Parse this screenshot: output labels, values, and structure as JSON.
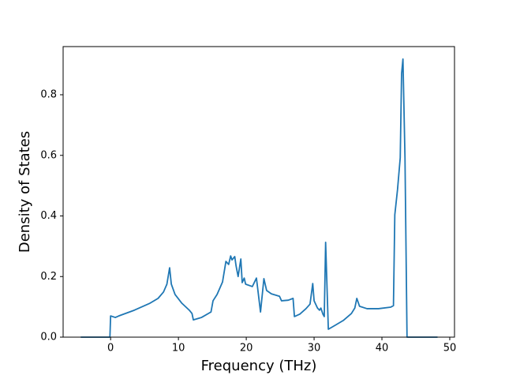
{
  "chart_data": {
    "type": "line",
    "xlabel": "Frequency (THz)",
    "ylabel": "Density of States",
    "x": [
      -4.4,
      -0.1,
      0,
      0.7,
      1.2,
      3.5,
      5.8,
      7.0,
      7.8,
      8.3,
      8.7,
      8.95,
      9.5,
      10.5,
      11.6,
      12.0,
      12.2,
      13.4,
      14.8,
      15.1,
      15.7,
      16.5,
      17.0,
      17.4,
      17.7,
      17.9,
      18.3,
      18.5,
      18.8,
      19.2,
      19.4,
      19.7,
      19.9,
      20.9,
      21.5,
      22.1,
      22.6,
      23.0,
      23.7,
      24.9,
      25.2,
      26.2,
      26.9,
      27.1,
      27.9,
      28.8,
      29.4,
      29.8,
      30.0,
      30.5,
      30.8,
      31.0,
      31.3,
      31.5,
      31.7,
      32.1,
      33.1,
      34.3,
      35.5,
      36.0,
      36.3,
      36.7,
      37.8,
      39.5,
      41.3,
      41.7,
      41.9,
      42.3,
      42.7,
      42.9,
      43.1,
      43.4,
      43.7,
      48.2
    ],
    "series": [
      {
        "color": "#1f77b4",
        "values": [
          0,
          0,
          0.07,
          0.065,
          0.07,
          0.089,
          0.112,
          0.128,
          0.149,
          0.175,
          0.229,
          0.175,
          0.141,
          0.112,
          0.089,
          0.078,
          0.057,
          0.065,
          0.083,
          0.12,
          0.141,
          0.182,
          0.25,
          0.24,
          0.268,
          0.255,
          0.266,
          0.235,
          0.2,
          0.258,
          0.18,
          0.195,
          0.175,
          0.167,
          0.195,
          0.083,
          0.193,
          0.154,
          0.143,
          0.135,
          0.12,
          0.122,
          0.128,
          0.068,
          0.076,
          0.094,
          0.109,
          0.177,
          0.12,
          0.096,
          0.089,
          0.096,
          0.076,
          0.068,
          0.313,
          0.026,
          0.039,
          0.055,
          0.078,
          0.096,
          0.128,
          0.102,
          0.094,
          0.094,
          0.099,
          0.104,
          0.404,
          0.487,
          0.592,
          0.87,
          0.918,
          0.592,
          0,
          0
        ]
      }
    ],
    "xlim": [
      -7.0,
      50.7
    ],
    "ylim": [
      0,
      0.959
    ],
    "xticks": [
      0,
      10,
      20,
      30,
      40,
      50
    ],
    "yticks": [
      {
        "value": 0,
        "label": "0.0"
      },
      0.2,
      0.4,
      0.6,
      0.8
    ],
    "grid": false
  }
}
